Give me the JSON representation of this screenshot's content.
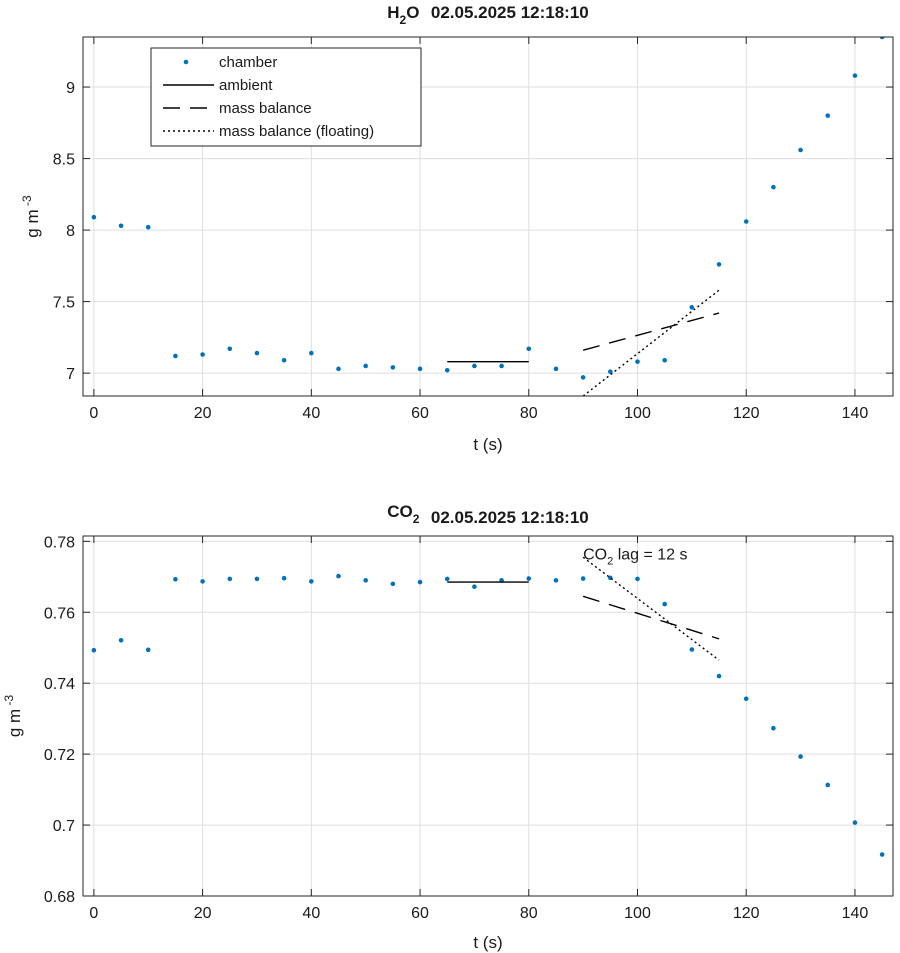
{
  "chart_data": [
    {
      "type": "scatter",
      "title": {
        "species_main": "H",
        "species_sub": "2",
        "species_tail": "O",
        "datetime": "02.05.2025 12:18:10"
      },
      "xlabel": "t (s)",
      "ylabel": {
        "main": "g m",
        "sup": "-3"
      },
      "xlim": [
        -2,
        147
      ],
      "ylim": [
        6.84,
        9.35
      ],
      "xticks": [
        0,
        20,
        40,
        60,
        80,
        100,
        120,
        140
      ],
      "yticks": [
        7,
        7.5,
        8,
        8.5,
        9
      ],
      "ytick_labels": [
        "7",
        "7.5",
        "8",
        "8.5",
        "9"
      ],
      "grid": true,
      "legend": {
        "position": "top-left",
        "entries": [
          {
            "key": "chamber",
            "label": "chamber"
          },
          {
            "key": "ambient",
            "label": "ambient"
          },
          {
            "key": "mass_balance",
            "label": "mass balance"
          },
          {
            "key": "floating",
            "label": "mass balance (floating)"
          }
        ]
      },
      "series": [
        {
          "key": "chamber",
          "style": "points",
          "color": "#0072BD",
          "x": [
            0,
            5,
            10,
            15,
            20,
            25,
            30,
            35,
            40,
            45,
            50,
            55,
            60,
            65,
            70,
            75,
            80,
            85,
            90,
            95,
            100,
            105,
            110,
            115,
            120,
            125,
            130,
            135,
            140,
            145
          ],
          "y": [
            8.09,
            8.03,
            8.02,
            7.12,
            7.13,
            7.17,
            7.14,
            7.09,
            7.14,
            7.03,
            7.05,
            7.04,
            7.03,
            7.02,
            7.05,
            7.05,
            7.17,
            7.03,
            6.97,
            7.01,
            7.08,
            7.09,
            7.46,
            7.76,
            8.06,
            8.3,
            8.56,
            8.8,
            9.08,
            9.35
          ]
        },
        {
          "key": "ambient",
          "style": "solid",
          "color": "#000000",
          "x": [
            65,
            80
          ],
          "y": [
            7.08,
            7.08
          ]
        },
        {
          "key": "mass_balance",
          "style": "dashed",
          "color": "#000000",
          "x": [
            90,
            115
          ],
          "y": [
            7.16,
            7.42
          ]
        },
        {
          "key": "floating",
          "style": "dotted",
          "color": "#000000",
          "x": [
            90,
            115
          ],
          "y": [
            6.84,
            7.58
          ]
        }
      ]
    },
    {
      "type": "scatter",
      "title": {
        "species_main": "CO",
        "species_sub": "2",
        "species_tail": "",
        "datetime": "02.05.2025 12:18:10"
      },
      "xlabel": "t (s)",
      "ylabel": {
        "main": "g m",
        "sup": "-3"
      },
      "xlim": [
        -2,
        147
      ],
      "ylim": [
        0.68,
        0.7815
      ],
      "xticks": [
        0,
        20,
        40,
        60,
        80,
        100,
        120,
        140
      ],
      "yticks": [
        0.68,
        0.7,
        0.72,
        0.74,
        0.76,
        0.78
      ],
      "ytick_labels": [
        "0.68",
        "0.7",
        "0.72",
        "0.74",
        "0.76",
        "0.78"
      ],
      "grid": true,
      "annotation": {
        "main": "CO",
        "sub": "2",
        "tail": " lag = 12 s",
        "x": 90,
        "y": 0.7765
      },
      "series": [
        {
          "key": "chamber",
          "style": "points",
          "color": "#0072BD",
          "x": [
            0,
            5,
            10,
            15,
            20,
            25,
            30,
            35,
            40,
            45,
            50,
            55,
            60,
            65,
            70,
            75,
            80,
            85,
            90,
            95,
            100,
            105,
            110,
            115,
            120,
            125,
            130,
            135,
            140,
            145
          ],
          "y": [
            0.7493,
            0.7521,
            0.7494,
            0.7693,
            0.7687,
            0.7694,
            0.7694,
            0.7696,
            0.7687,
            0.7702,
            0.769,
            0.768,
            0.7685,
            0.7694,
            0.7672,
            0.769,
            0.7695,
            0.769,
            0.7695,
            0.7697,
            0.7694,
            0.7623,
            0.7495,
            0.742,
            0.7356,
            0.7273,
            0.7193,
            0.7113,
            0.7007,
            0.6917
          ]
        },
        {
          "key": "ambient",
          "style": "solid",
          "color": "#000000",
          "x": [
            65,
            80
          ],
          "y": [
            0.7685,
            0.7685
          ]
        },
        {
          "key": "mass_balance",
          "style": "dashed",
          "color": "#000000",
          "x": [
            90,
            115
          ],
          "y": [
            0.7645,
            0.7525
          ]
        },
        {
          "key": "floating",
          "style": "dotted",
          "color": "#000000",
          "x": [
            90,
            115
          ],
          "y": [
            0.7755,
            0.7465
          ]
        }
      ]
    }
  ]
}
